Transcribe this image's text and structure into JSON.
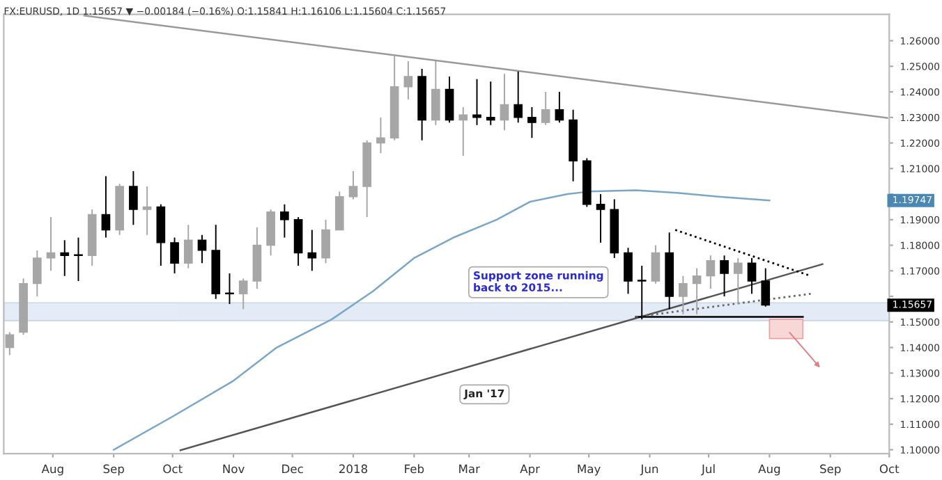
{
  "chart_data": {
    "type": "candlestick",
    "title": "FX:EURUSD, 1D 1.15657 ▼ −0.00184 (−0.16%) O:1.15841 H:1.16106 L:1.15604 C:1.15657",
    "x": [
      "2017-07-10",
      "2017-07-17",
      "2017-07-24",
      "2017-07-31",
      "2017-08-07",
      "2017-08-14",
      "2017-08-21",
      "2017-08-28",
      "2017-09-04",
      "2017-09-11",
      "2017-09-18",
      "2017-09-25",
      "2017-10-02",
      "2017-10-09",
      "2017-10-16",
      "2017-10-23",
      "2017-10-30",
      "2017-11-06",
      "2017-11-13",
      "2017-11-20",
      "2017-11-27",
      "2017-12-04",
      "2017-12-11",
      "2017-12-18",
      "2017-12-25",
      "2018-01-01",
      "2018-01-08",
      "2018-01-15",
      "2018-01-22",
      "2018-01-29",
      "2018-02-05",
      "2018-02-12",
      "2018-02-19",
      "2018-02-26",
      "2018-03-05",
      "2018-03-12",
      "2018-03-19",
      "2018-03-26",
      "2018-04-02",
      "2018-04-09",
      "2018-04-16",
      "2018-04-23",
      "2018-04-30",
      "2018-05-07",
      "2018-05-14",
      "2018-05-21",
      "2018-05-28",
      "2018-06-04",
      "2018-06-11",
      "2018-06-18",
      "2018-06-25",
      "2018-07-02",
      "2018-07-09",
      "2018-07-16",
      "2018-07-23",
      "2018-07-30"
    ],
    "ohlc": [
      [
        1.14,
        1.146,
        1.137,
        1.145
      ],
      [
        1.146,
        1.167,
        1.145,
        1.165
      ],
      [
        1.165,
        1.178,
        1.16,
        1.175
      ],
      [
        1.175,
        1.191,
        1.17,
        1.177
      ],
      [
        1.177,
        1.182,
        1.168,
        1.176
      ],
      [
        1.176,
        1.183,
        1.166,
        1.176
      ],
      [
        1.176,
        1.194,
        1.172,
        1.192
      ],
      [
        1.192,
        1.207,
        1.183,
        1.186
      ],
      [
        1.186,
        1.204,
        1.184,
        1.203
      ],
      [
        1.203,
        1.209,
        1.188,
        1.194
      ],
      [
        1.194,
        1.203,
        1.184,
        1.195
      ],
      [
        1.195,
        1.196,
        1.172,
        1.181
      ],
      [
        1.181,
        1.183,
        1.169,
        1.173
      ],
      [
        1.173,
        1.188,
        1.171,
        1.182
      ],
      [
        1.182,
        1.184,
        1.173,
        1.178
      ],
      [
        1.178,
        1.188,
        1.159,
        1.161
      ],
      [
        1.161,
        1.169,
        1.157,
        1.161
      ],
      [
        1.161,
        1.167,
        1.155,
        1.166
      ],
      [
        1.166,
        1.187,
        1.163,
        1.18
      ],
      [
        1.18,
        1.194,
        1.176,
        1.193
      ],
      [
        1.193,
        1.196,
        1.183,
        1.19
      ],
      [
        1.19,
        1.191,
        1.172,
        1.177
      ],
      [
        1.177,
        1.186,
        1.17,
        1.175
      ],
      [
        1.175,
        1.19,
        1.173,
        1.186
      ],
      [
        1.186,
        1.201,
        1.186,
        1.199
      ],
      [
        1.199,
        1.209,
        1.198,
        1.203
      ],
      [
        1.203,
        1.221,
        1.191,
        1.22
      ],
      [
        1.22,
        1.23,
        1.216,
        1.222
      ],
      [
        1.222,
        1.254,
        1.221,
        1.242
      ],
      [
        1.242,
        1.252,
        1.237,
        1.246
      ],
      [
        1.246,
        1.249,
        1.221,
        1.229
      ],
      [
        1.229,
        1.252,
        1.227,
        1.241
      ],
      [
        1.241,
        1.246,
        1.228,
        1.229
      ],
      [
        1.229,
        1.234,
        1.215,
        1.231
      ],
      [
        1.231,
        1.245,
        1.227,
        1.23
      ],
      [
        1.23,
        1.244,
        1.227,
        1.229
      ],
      [
        1.229,
        1.247,
        1.225,
        1.235
      ],
      [
        1.235,
        1.248,
        1.228,
        1.23
      ],
      [
        1.23,
        1.234,
        1.222,
        1.228
      ],
      [
        1.228,
        1.24,
        1.227,
        1.233
      ],
      [
        1.233,
        1.24,
        1.228,
        1.229
      ],
      [
        1.229,
        1.233,
        1.205,
        1.213
      ],
      [
        1.213,
        1.214,
        1.195,
        1.196
      ],
      [
        1.196,
        1.2,
        1.181,
        1.194
      ],
      [
        1.194,
        1.198,
        1.175,
        1.177
      ],
      [
        1.177,
        1.179,
        1.161,
        1.166
      ],
      [
        1.166,
        1.172,
        1.151,
        1.166
      ],
      [
        1.166,
        1.18,
        1.165,
        1.177
      ],
      [
        1.177,
        1.185,
        1.155,
        1.16
      ],
      [
        1.16,
        1.168,
        1.153,
        1.165
      ],
      [
        1.165,
        1.171,
        1.153,
        1.168
      ],
      [
        1.168,
        1.176,
        1.163,
        1.174
      ],
      [
        1.174,
        1.176,
        1.16,
        1.169
      ],
      [
        1.169,
        1.175,
        1.157,
        1.173
      ],
      [
        1.173,
        1.175,
        1.161,
        1.166
      ],
      [
        1.166,
        1.171,
        1.156,
        1.15657
      ]
    ],
    "colors": [
      "#a6a6a6",
      "#a6a6a6",
      "#a6a6a6",
      "#a6a6a6",
      "#000000",
      "#000000",
      "#a6a6a6",
      "#000000",
      "#a6a6a6",
      "#000000",
      "#a6a6a6",
      "#000000",
      "#000000",
      "#a6a6a6",
      "#000000",
      "#000000",
      "#000000",
      "#a6a6a6",
      "#a6a6a6",
      "#a6a6a6",
      "#000000",
      "#000000",
      "#000000",
      "#a6a6a6",
      "#a6a6a6",
      "#a6a6a6",
      "#a6a6a6",
      "#a6a6a6",
      "#a6a6a6",
      "#a6a6a6",
      "#000000",
      "#a6a6a6",
      "#000000",
      "#a6a6a6",
      "#000000",
      "#000000",
      "#a6a6a6",
      "#000000",
      "#000000",
      "#a6a6a6",
      "#000000",
      "#000000",
      "#000000",
      "#000000",
      "#000000",
      "#000000",
      "#000000",
      "#a6a6a6",
      "#000000",
      "#a6a6a6",
      "#a6a6a6",
      "#a6a6a6",
      "#000000",
      "#a6a6a6",
      "#000000",
      "#000000"
    ],
    "series": [
      {
        "type": "line",
        "color": "#7aa7c7",
        "x": [
          "2017-09-01",
          "2017-10-01",
          "2017-11-01",
          "2017-11-23",
          "2017-12-21",
          "2018-01-11",
          "2018-02-01",
          "2018-02-21",
          "2018-03-15",
          "2018-04-01",
          "2018-04-20",
          "2018-05-01",
          "2018-05-25",
          "2018-06-15",
          "2018-07-06",
          "2018-08-01"
        ],
        "values": [
          1.1,
          1.113,
          1.127,
          1.14,
          1.151,
          1.162,
          1.175,
          1.183,
          1.19,
          1.197,
          1.2,
          1.201,
          1.2015,
          1.2005,
          1.199,
          1.1975
        ]
      },
      {
        "type": "line",
        "color": "#999999",
        "x": [
          "2017-08-17",
          "2018-09-30"
        ],
        "values": [
          1.2698,
          1.2298
        ]
      },
      {
        "type": "line",
        "color": "#555555",
        "x": [
          "2017-10-05",
          "2018-08-28"
        ],
        "values": [
          1.0998,
          1.1726
        ]
      },
      {
        "type": "line",
        "color": "#000000",
        "x": [
          "2018-05-25",
          "2018-08-18"
        ],
        "values": [
          1.152,
          1.152
        ]
      },
      {
        "type": "line",
        "color": "#000000",
        "line_style": "dotted",
        "x": [
          "2018-06-14",
          "2018-08-22"
        ],
        "values": [
          1.186,
          1.168
        ]
      },
      {
        "type": "line",
        "color": "#666666",
        "line_style": "dotted",
        "x": [
          "2018-05-25",
          "2018-08-22"
        ],
        "values": [
          1.152,
          1.161
        ]
      }
    ],
    "bands": [
      {
        "axis": "y",
        "from": 1.1505,
        "to": 1.1575,
        "color": "#dde8f5"
      }
    ],
    "annotations": [
      "Support zone running\nback to 2015...",
      "Jan '17",
      "1.19747",
      "1.15657"
    ],
    "xlim": [
      "2017-07-07",
      "2018-10-01"
    ],
    "xticks": [
      {
        "value": "2017-08-01",
        "label": "Aug"
      },
      {
        "value": "2017-09-01",
        "label": "Sep"
      },
      {
        "value": "2017-10-01",
        "label": "Oct"
      },
      {
        "value": "2017-11-01",
        "label": "Nov"
      },
      {
        "value": "2017-12-01",
        "label": "Dec"
      },
      {
        "value": "2018-01-01",
        "label": "2018"
      },
      {
        "value": "2018-02-01",
        "label": "Feb"
      },
      {
        "value": "2018-03-01",
        "label": "Mar"
      },
      {
        "value": "2018-04-01",
        "label": "Apr"
      },
      {
        "value": "2018-05-01",
        "label": "May"
      },
      {
        "value": "2018-06-01",
        "label": "Jun"
      },
      {
        "value": "2018-07-01",
        "label": "Jul"
      },
      {
        "value": "2018-08-01",
        "label": "Aug"
      },
      {
        "value": "2018-09-01",
        "label": "Sep"
      },
      {
        "value": "2018-10-01",
        "label": "Oct"
      }
    ],
    "ylim": [
      1.0985,
      1.2703
    ],
    "yticks": [
      {
        "value": 1.1,
        "label": "1.10000"
      },
      {
        "value": 1.11,
        "label": "1.11000"
      },
      {
        "value": 1.12,
        "label": "1.12000"
      },
      {
        "value": 1.13,
        "label": "1.13000"
      },
      {
        "value": 1.14,
        "label": "1.14000"
      },
      {
        "value": 1.15,
        "label": "1.15000"
      },
      {
        "value": 1.16,
        "label": null
      },
      {
        "value": 1.17,
        "label": "1.17000"
      },
      {
        "value": 1.18,
        "label": "1.18000"
      },
      {
        "value": 1.19,
        "label": "1.19000"
      },
      {
        "value": 1.2,
        "label": null
      },
      {
        "value": 1.21,
        "label": "1.21000"
      },
      {
        "value": 1.22,
        "label": "1.22000"
      },
      {
        "value": 1.23,
        "label": "1.23000"
      },
      {
        "value": 1.24,
        "label": "1.24000"
      },
      {
        "value": 1.25,
        "label": "1.25000"
      },
      {
        "value": 1.26,
        "label": "1.26000"
      }
    ],
    "grid": false,
    "legend": false
  }
}
